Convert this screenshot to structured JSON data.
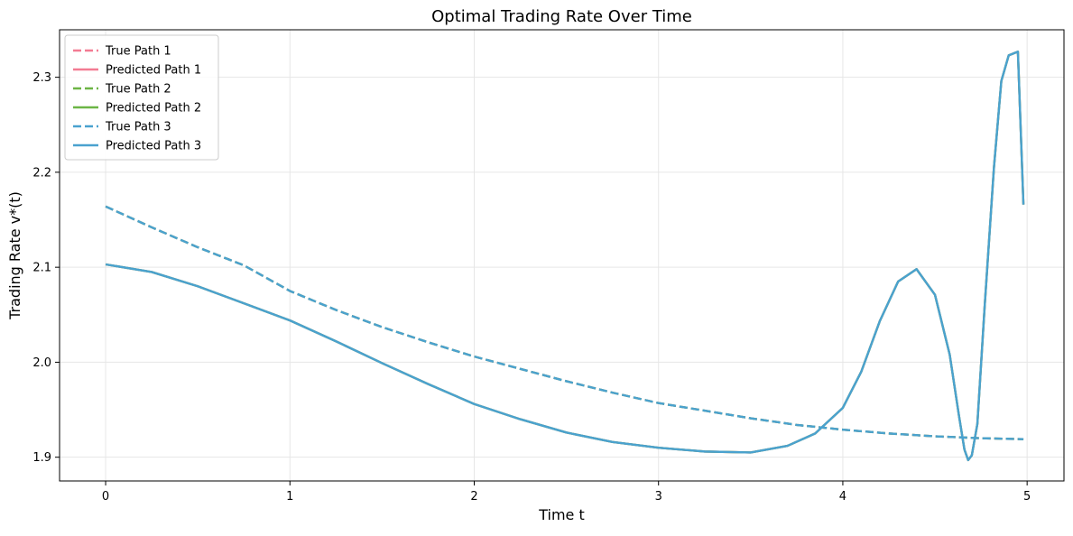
{
  "chart_data": {
    "type": "line",
    "title": "Optimal Trading Rate Over Time",
    "xlabel": "Time t",
    "ylabel": "Trading Rate v*(t)",
    "xlim": [
      -0.25,
      5.2
    ],
    "ylim": [
      1.875,
      2.35
    ],
    "xticks": [
      0,
      1,
      2,
      3,
      4,
      5
    ],
    "xtick_labels": [
      "0",
      "1",
      "2",
      "3",
      "4",
      "5"
    ],
    "yticks": [
      1.9,
      2.0,
      2.1,
      2.2,
      2.3
    ],
    "ytick_labels": [
      "1.9",
      "2.0",
      "2.1",
      "2.2",
      "2.3"
    ],
    "grid": true,
    "legend_position": "top-left",
    "series": [
      {
        "name": "True Path 1",
        "style": "dashed",
        "color": "#f37b93",
        "x": [
          0,
          0.25,
          0.5,
          0.75,
          1.0,
          1.25,
          1.5,
          1.75,
          2.0,
          2.25,
          2.5,
          2.75,
          3.0,
          3.25,
          3.5,
          3.75,
          4.0,
          4.25,
          4.5,
          4.75,
          4.98
        ],
        "y": [
          2.164,
          2.142,
          2.121,
          2.102,
          2.075,
          2.055,
          2.037,
          2.021,
          2.006,
          1.993,
          1.98,
          1.968,
          1.957,
          1.949,
          1.941,
          1.934,
          1.929,
          1.925,
          1.922,
          1.92,
          1.919
        ]
      },
      {
        "name": "Predicted Path 1",
        "style": "solid",
        "color": "#f37b93",
        "x": [
          0,
          0.25,
          0.5,
          0.75,
          1.0,
          1.25,
          1.5,
          1.75,
          2.0,
          2.25,
          2.5,
          2.75,
          3.0,
          3.25,
          3.5,
          3.7,
          3.85,
          4.0,
          4.1,
          4.2,
          4.3,
          4.4,
          4.5,
          4.58,
          4.63,
          4.66,
          4.68,
          4.7,
          4.73,
          4.77,
          4.82,
          4.86,
          4.9,
          4.95,
          4.98
        ],
        "y": [
          2.103,
          2.095,
          2.08,
          2.062,
          2.044,
          2.022,
          1.999,
          1.977,
          1.956,
          1.94,
          1.926,
          1.916,
          1.91,
          1.906,
          1.905,
          1.912,
          1.925,
          1.952,
          1.99,
          2.043,
          2.085,
          2.098,
          2.071,
          2.008,
          1.944,
          1.908,
          1.897,
          1.902,
          1.935,
          2.06,
          2.205,
          2.296,
          2.323,
          2.327,
          2.166
        ]
      },
      {
        "name": "True Path 2",
        "style": "dashed",
        "color": "#6cb545",
        "x": [
          0,
          0.25,
          0.5,
          0.75,
          1.0,
          1.25,
          1.5,
          1.75,
          2.0,
          2.25,
          2.5,
          2.75,
          3.0,
          3.25,
          3.5,
          3.75,
          4.0,
          4.25,
          4.5,
          4.75,
          4.98
        ],
        "y": [
          2.164,
          2.142,
          2.121,
          2.102,
          2.075,
          2.055,
          2.037,
          2.021,
          2.006,
          1.993,
          1.98,
          1.968,
          1.957,
          1.949,
          1.941,
          1.934,
          1.929,
          1.925,
          1.922,
          1.92,
          1.919
        ]
      },
      {
        "name": "Predicted Path 2",
        "style": "solid",
        "color": "#6cb545",
        "x": [
          0,
          0.25,
          0.5,
          0.75,
          1.0,
          1.25,
          1.5,
          1.75,
          2.0,
          2.25,
          2.5,
          2.75,
          3.0,
          3.25,
          3.5,
          3.7,
          3.85,
          4.0,
          4.1,
          4.2,
          4.3,
          4.4,
          4.5,
          4.58,
          4.63,
          4.66,
          4.68,
          4.7,
          4.73,
          4.77,
          4.82,
          4.86,
          4.9,
          4.95,
          4.98
        ],
        "y": [
          2.103,
          2.095,
          2.08,
          2.062,
          2.044,
          2.022,
          1.999,
          1.977,
          1.956,
          1.94,
          1.926,
          1.916,
          1.91,
          1.906,
          1.905,
          1.912,
          1.925,
          1.952,
          1.99,
          2.043,
          2.085,
          2.098,
          2.071,
          2.008,
          1.944,
          1.908,
          1.897,
          1.902,
          1.935,
          2.06,
          2.205,
          2.296,
          2.323,
          2.327,
          2.166
        ]
      },
      {
        "name": "True Path 3",
        "style": "dashed",
        "color": "#4aa2cf",
        "x": [
          0,
          0.25,
          0.5,
          0.75,
          1.0,
          1.25,
          1.5,
          1.75,
          2.0,
          2.25,
          2.5,
          2.75,
          3.0,
          3.25,
          3.5,
          3.75,
          4.0,
          4.25,
          4.5,
          4.75,
          4.98
        ],
        "y": [
          2.164,
          2.142,
          2.121,
          2.102,
          2.075,
          2.055,
          2.037,
          2.021,
          2.006,
          1.993,
          1.98,
          1.968,
          1.957,
          1.949,
          1.941,
          1.934,
          1.929,
          1.925,
          1.922,
          1.92,
          1.919
        ]
      },
      {
        "name": "Predicted Path 3",
        "style": "solid",
        "color": "#4aa2cf",
        "x": [
          0,
          0.25,
          0.5,
          0.75,
          1.0,
          1.25,
          1.5,
          1.75,
          2.0,
          2.25,
          2.5,
          2.75,
          3.0,
          3.25,
          3.5,
          3.7,
          3.85,
          4.0,
          4.1,
          4.2,
          4.3,
          4.4,
          4.5,
          4.58,
          4.63,
          4.66,
          4.68,
          4.7,
          4.73,
          4.77,
          4.82,
          4.86,
          4.9,
          4.95,
          4.98
        ],
        "y": [
          2.103,
          2.095,
          2.08,
          2.062,
          2.044,
          2.022,
          1.999,
          1.977,
          1.956,
          1.94,
          1.926,
          1.916,
          1.91,
          1.906,
          1.905,
          1.912,
          1.925,
          1.952,
          1.99,
          2.043,
          2.085,
          2.098,
          2.071,
          2.008,
          1.944,
          1.908,
          1.897,
          1.902,
          1.935,
          2.06,
          2.205,
          2.296,
          2.323,
          2.327,
          2.166
        ]
      }
    ]
  }
}
